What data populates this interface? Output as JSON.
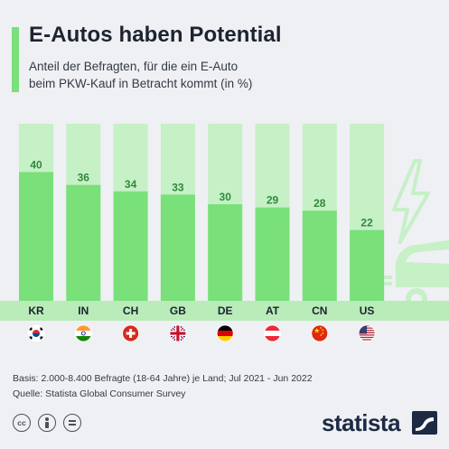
{
  "header": {
    "title": "E-Autos haben Potential",
    "subtitle_line1": "Anteil der Befragten, für die ein E-Auto",
    "subtitle_line2": "beim PKW-Kauf in Betracht kommt (in %)"
  },
  "chart_data": {
    "type": "bar",
    "categories": [
      "KR",
      "IN",
      "CH",
      "GB",
      "DE",
      "AT",
      "CN",
      "US"
    ],
    "values": [
      40,
      36,
      34,
      33,
      30,
      29,
      28,
      22
    ],
    "flags": [
      "south-korea-flag-icon",
      "india-flag-icon",
      "switzerland-flag-icon",
      "uk-flag-icon",
      "germany-flag-icon",
      "austria-flag-icon",
      "china-flag-icon",
      "usa-flag-icon"
    ],
    "ylim": [
      0,
      55
    ],
    "grid": false,
    "legend": "none",
    "decoration": [
      "lightning-bolt-icon",
      "electric-car-icon"
    ]
  },
  "footer": {
    "basis": "Basis: 2.000-8.400 Befragte (18-64 Jahre) je Land; Jul 2021 - Jun 2022",
    "source": "Quelle: Statista Global Consumer Survey",
    "license_icons": [
      "cc-icon",
      "attribution-icon",
      "no-derivatives-icon"
    ],
    "brand": "statista"
  },
  "colors": {
    "background": "#eef0f3",
    "bar": "#7ae07a",
    "bar_background": "#c6f0c6",
    "label_band": "#b9ecb9",
    "value_label": "#2f8a3c",
    "text": "#1d2330",
    "brand": "#1d2a44"
  }
}
